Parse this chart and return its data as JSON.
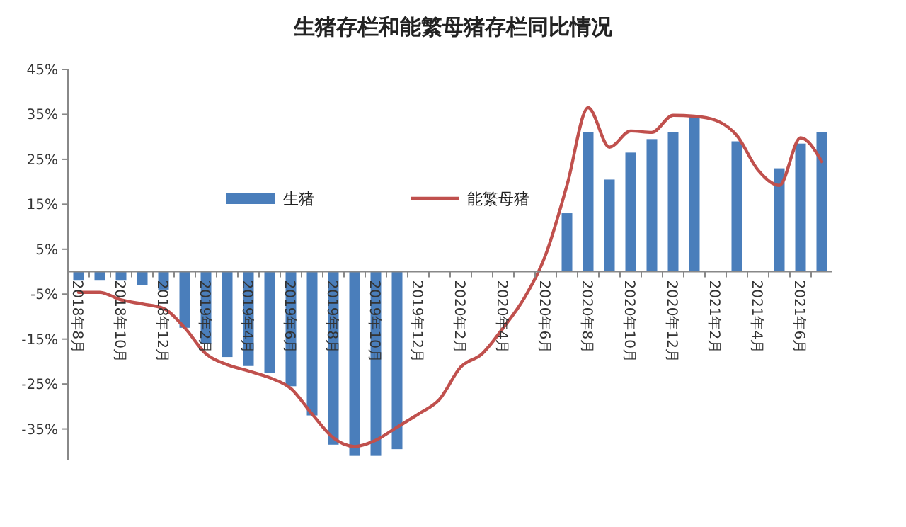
{
  "chart_data": {
    "type": "bar",
    "title": "生猪存栏和能繁母猪存栏同比情况",
    "categories": [
      "2018年8月",
      null,
      "2018年10月",
      null,
      "2018年12月",
      null,
      "2019年2月",
      null,
      "2019年4月",
      null,
      "2019年6月",
      null,
      "2019年8月",
      null,
      "2019年10月",
      null,
      "2019年12月",
      null,
      "2020年2月",
      null,
      "2020年4月",
      null,
      "2020年6月",
      null,
      "2020年8月",
      null,
      "2020年10月",
      null,
      "2020年12月",
      null,
      "2021年2月",
      null,
      "2021年4月",
      null,
      "2021年6月",
      null
    ],
    "series": [
      {
        "name": "生猪",
        "color": "#4a7ebb",
        "values": [
          -2,
          -2,
          -2,
          -3,
          -4,
          -12.5,
          -16,
          -19,
          -21,
          -22.5,
          -25.5,
          -32,
          -38.5,
          -41,
          -41,
          -39.5,
          null,
          null,
          null,
          null,
          null,
          null,
          null,
          13,
          31,
          20.5,
          26.5,
          29.5,
          31,
          34.5,
          null,
          29,
          null,
          23,
          28.5,
          31
        ]
      },
      {
        "name": "能繁母猪",
        "type": "line",
        "color": "#c0504d",
        "values": [
          -4.6,
          -4.6,
          -6.3,
          -7.2,
          -8.2,
          -12.5,
          -18.3,
          -20.7,
          -22.1,
          -23.6,
          -26,
          -31.7,
          -37,
          -38.9,
          -37.5,
          -34.6,
          -31.7,
          -28.4,
          -21.2,
          -18.3,
          -12.5,
          -5.8,
          3.8,
          19.2,
          36.5,
          27.7,
          31.3,
          31,
          34.8,
          34.6,
          33.7,
          30.3,
          22.6,
          19.2,
          29.8,
          24.5
        ]
      }
    ],
    "ylim": [
      -42,
      45
    ],
    "yticks": [
      {
        "value": -35,
        "label": "-35%"
      },
      {
        "value": -25,
        "label": "-25%"
      },
      {
        "value": -15,
        "label": "-15%"
      },
      {
        "value": -5,
        "label": "-5%"
      },
      {
        "value": 5,
        "label": "5%"
      },
      {
        "value": 15,
        "label": "15%"
      },
      {
        "value": 25,
        "label": "25%"
      },
      {
        "value": 35,
        "label": "35%"
      },
      {
        "value": 45,
        "label": "45%"
      }
    ],
    "legend": "top",
    "grid": false
  }
}
